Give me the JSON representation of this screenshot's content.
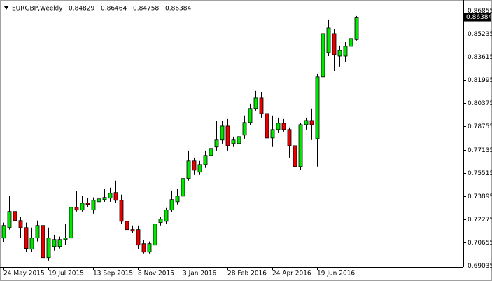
{
  "chart_data": {
    "type": "candlestick",
    "title": "EURGBP,Weekly",
    "categories": [
      "24 May 2015",
      null,
      null,
      null,
      null,
      null,
      null,
      null,
      "19 Jul 2015",
      null,
      null,
      null,
      null,
      null,
      null,
      null,
      "13 Sep 2015",
      null,
      null,
      null,
      null,
      null,
      null,
      null,
      "8 Nov 2015",
      null,
      null,
      null,
      null,
      null,
      null,
      null,
      "3 Jan 2016",
      null,
      null,
      null,
      null,
      null,
      null,
      null,
      "28 Feb 2016",
      null,
      null,
      null,
      null,
      null,
      null,
      null,
      "24 Apr 2016",
      null,
      null,
      null,
      null,
      null,
      null,
      null,
      "19 Jun 2016",
      null,
      null,
      null,
      null,
      null,
      null,
      null
    ],
    "open": [
      0.7096,
      0.7169,
      0.7282,
      0.7218,
      0.7169,
      0.7018,
      0.7096,
      0.7184,
      0.6959,
      0.7037,
      0.7037,
      0.7086,
      0.7096,
      0.7311,
      0.7292,
      0.734,
      0.7292,
      0.735,
      0.7365,
      0.7375,
      0.7414,
      0.736,
      0.7213,
      0.7155,
      0.7155,
      0.7057,
      0.6998,
      0.7047,
      0.7204,
      0.7213,
      0.7292,
      0.735,
      0.7389,
      0.7512,
      0.7634,
      0.7556,
      0.7609,
      0.7673,
      0.7732,
      0.7781,
      0.7878,
      0.7756,
      0.7756,
      0.7815,
      0.7903,
      0.8001,
      0.8074,
      0.7966,
      0.7795,
      0.7854,
      0.7898,
      0.7854,
      0.7741,
      0.7595,
      0.7888,
      0.7917,
      0.779,
      0.8221,
      0.8392,
      0.8524,
      0.8367,
      0.8367,
      0.8436,
      0.84829
    ],
    "high": [
      0.7204,
      0.7389,
      0.7365,
      0.7243,
      0.7204,
      0.7169,
      0.7218,
      0.7204,
      0.7169,
      0.712,
      0.7106,
      0.7194,
      0.7389,
      0.7424,
      0.7389,
      0.7375,
      0.738,
      0.7414,
      0.7438,
      0.7448,
      0.7497,
      0.7399,
      0.7243,
      0.7184,
      0.7184,
      0.7081,
      0.7072,
      0.7204,
      0.7243,
      0.7306,
      0.7428,
      0.7438,
      0.7526,
      0.7707,
      0.7658,
      0.7634,
      0.7707,
      0.7781,
      0.7917,
      0.7917,
      0.7927,
      0.7805,
      0.7854,
      0.7952,
      0.8035,
      0.8123,
      0.8113,
      0.8001,
      0.7952,
      0.7937,
      0.7927,
      0.7869,
      0.7756,
      0.7903,
      0.7937,
      0.8001,
      0.8245,
      0.8538,
      0.8622,
      0.8553,
      0.8441,
      0.8465,
      0.8514,
      0.86464
    ],
    "low": [
      0.7067,
      0.7155,
      0.7194,
      0.7096,
      0.6998,
      0.6998,
      0.7072,
      0.6939,
      0.6939,
      0.7008,
      0.7023,
      0.7047,
      0.7086,
      0.7282,
      0.7282,
      0.7311,
      0.7267,
      0.7316,
      0.735,
      0.735,
      0.734,
      0.7194,
      0.7135,
      0.713,
      0.7018,
      0.6988,
      0.6988,
      0.7037,
      0.7184,
      0.7194,
      0.7277,
      0.7331,
      0.7365,
      0.7497,
      0.7536,
      0.7536,
      0.7585,
      0.7658,
      0.7707,
      0.7756,
      0.7707,
      0.7732,
      0.7732,
      0.779,
      0.7888,
      0.7986,
      0.7937,
      0.7756,
      0.7732,
      0.7829,
      0.7839,
      0.7658,
      0.757,
      0.757,
      0.7854,
      0.7781,
      0.7595,
      0.8196,
      0.8367,
      0.826,
      0.8294,
      0.8328,
      0.8406,
      0.84758
    ],
    "close": [
      0.7184,
      0.7282,
      0.7218,
      0.7169,
      0.7023,
      0.7096,
      0.7184,
      0.6959,
      0.7096,
      0.7086,
      0.7086,
      0.7096,
      0.7311,
      0.7292,
      0.734,
      0.7331,
      0.736,
      0.737,
      0.738,
      0.7409,
      0.736,
      0.7213,
      0.7155,
      0.7145,
      0.7047,
      0.6998,
      0.7057,
      0.7194,
      0.7228,
      0.7292,
      0.7365,
      0.7389,
      0.7512,
      0.7634,
      0.757,
      0.7609,
      0.7673,
      0.7722,
      0.7781,
      0.7878,
      0.7741,
      0.7781,
      0.7805,
      0.7903,
      0.8001,
      0.8074,
      0.7966,
      0.7795,
      0.7854,
      0.7898,
      0.7854,
      0.7741,
      0.7595,
      0.7888,
      0.7917,
      0.7888,
      0.8221,
      0.8524,
      0.8563,
      0.8377,
      0.8406,
      0.8436,
      0.849,
      0.86384
    ],
    "up_color": "#00e600",
    "down_color": "#e60000",
    "ylim": [
      0.6894,
      0.8734
    ],
    "yticks": [
      0.86855,
      0.85235,
      0.83615,
      0.81995,
      0.80375,
      0.78755,
      0.77135,
      0.75515,
      0.73895,
      0.72275,
      0.70655,
      0.69035
    ],
    "grid": false
  }
}
